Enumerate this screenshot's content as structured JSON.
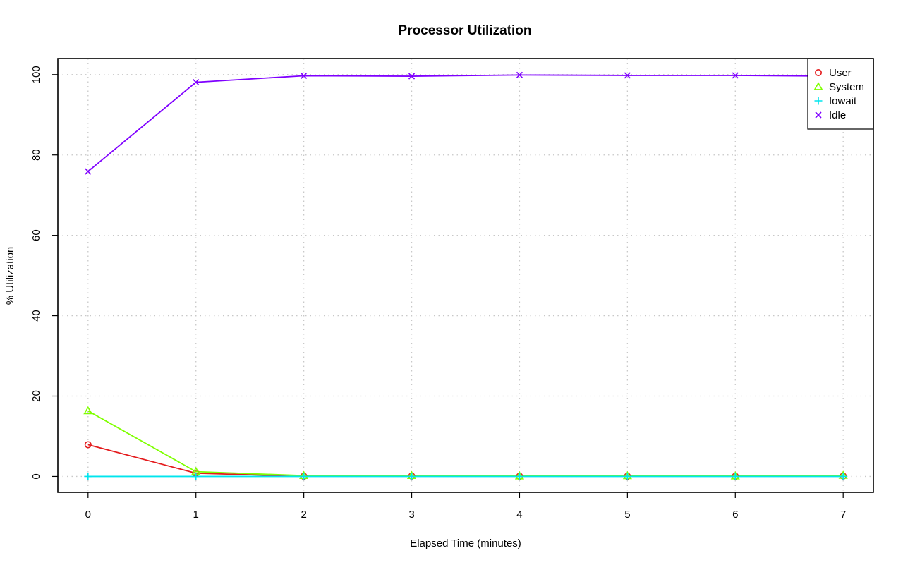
{
  "chart_data": {
    "type": "line",
    "title": "Processor Utilization",
    "xlabel": "Elapsed Time (minutes)",
    "ylabel": "% Utilization",
    "x": [
      0,
      1,
      2,
      3,
      4,
      5,
      6,
      7
    ],
    "xlim": [
      -0.28,
      7.28
    ],
    "ylim": [
      -3.96,
      104
    ],
    "xticks": [
      0,
      1,
      2,
      3,
      4,
      5,
      6,
      7
    ],
    "yticks": [
      0,
      20,
      40,
      60,
      80,
      100
    ],
    "grid": true,
    "legend_position": "top-right",
    "series": [
      {
        "name": "User",
        "color": "#e41a1c",
        "marker": "circle",
        "values": [
          7.9,
          0.8,
          0.05,
          0.1,
          0.05,
          0.05,
          0.05,
          0.1
        ]
      },
      {
        "name": "System",
        "color": "#7fff00",
        "marker": "triangle",
        "values": [
          16.3,
          1.2,
          0.2,
          0.2,
          0.1,
          0.15,
          0.1,
          0.25
        ]
      },
      {
        "name": "Iowait",
        "color": "#00e5ee",
        "marker": "plus",
        "values": [
          0.0,
          0.0,
          0.0,
          0.0,
          0.0,
          0.0,
          0.0,
          0.0
        ]
      },
      {
        "name": "Idle",
        "color": "#7f00ff",
        "marker": "x",
        "values": [
          75.9,
          98.1,
          99.7,
          99.6,
          99.9,
          99.8,
          99.8,
          99.6
        ]
      }
    ]
  }
}
